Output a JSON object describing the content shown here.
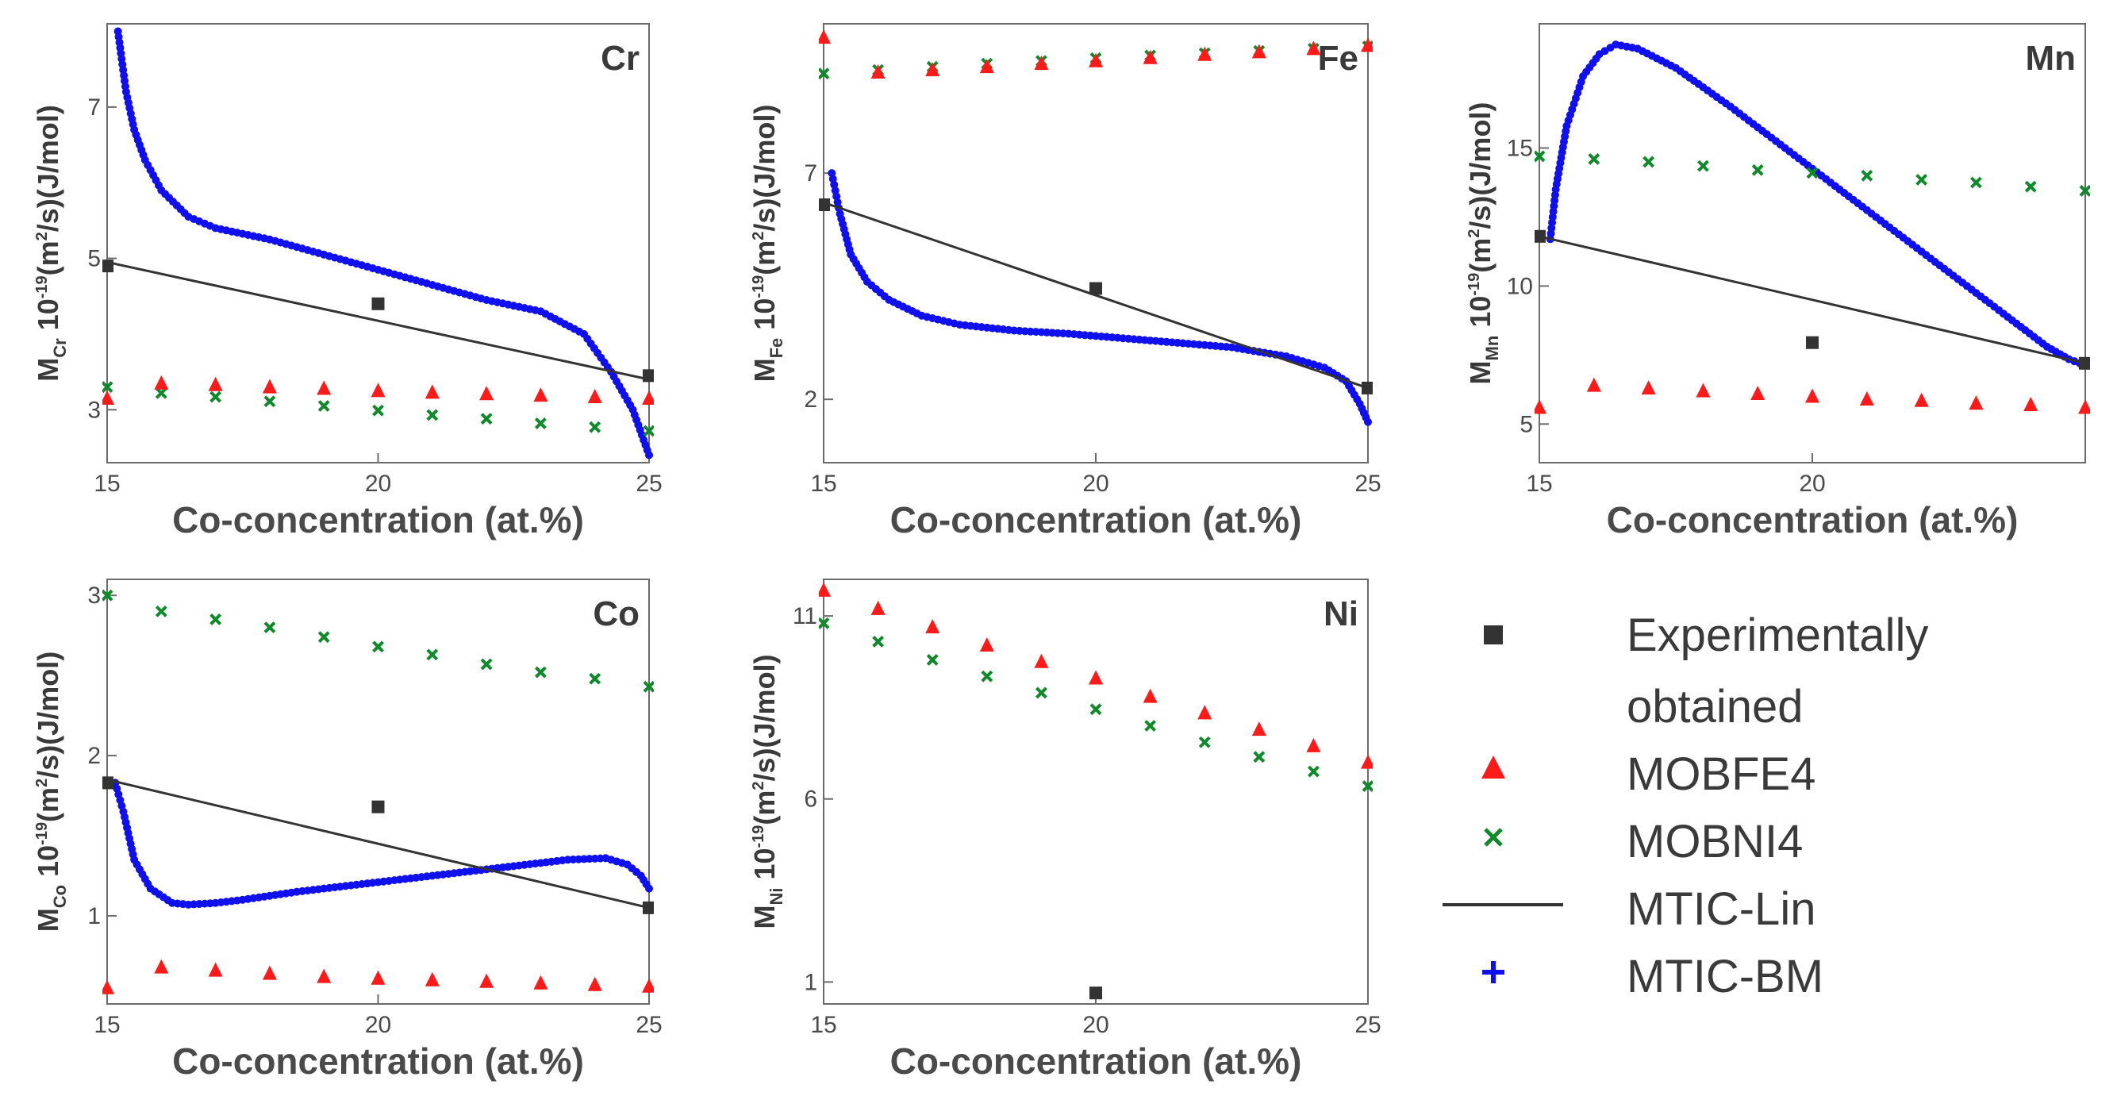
{
  "colors": {
    "experimental": "#333333",
    "mobfe4": "#ff1a1a",
    "mobni4": "#0f8a2a",
    "mtic_lin": "#333333",
    "mtic_bm": "#1010ee"
  },
  "legend": {
    "items": [
      {
        "key": "experimental",
        "marker": "square",
        "label_lines": [
          "Experimentally",
          "obtained"
        ]
      },
      {
        "key": "mobfe4",
        "marker": "triangle",
        "label_lines": [
          "MOBFE4"
        ]
      },
      {
        "key": "mobni4",
        "marker": "x",
        "label_lines": [
          "MOBNI4"
        ]
      },
      {
        "key": "mtic_lin",
        "marker": "line",
        "label_lines": [
          "MTIC-Lin"
        ]
      },
      {
        "key": "mtic_bm",
        "marker": "plus",
        "label_lines": [
          "MTIC-BM"
        ]
      }
    ]
  },
  "chart_data": [
    {
      "type": "scatter",
      "title": "Cr",
      "xlabel": "Co-concentration (at.%)",
      "ylabel": {
        "symbol": "M",
        "sub": "Cr",
        "prefix": "10",
        "sup_exp": "-19",
        "unit_pre": "(m",
        "unit_sup": "2",
        "unit_post": "/s)(J/mol)"
      },
      "xlim": [
        15,
        25
      ],
      "ylim": [
        2.3,
        8.1
      ],
      "xticks": [
        "15",
        "20",
        "25"
      ],
      "yticks": [
        "3",
        "5",
        "7"
      ],
      "experimental": {
        "x": [
          15,
          20,
          25
        ],
        "y": [
          4.9,
          4.4,
          3.45
        ]
      },
      "mtic_lin": {
        "x": [
          15,
          25
        ],
        "y": [
          4.95,
          3.4
        ]
      },
      "mobfe4": {
        "x": [
          15,
          16,
          17,
          18,
          19,
          20,
          21,
          22,
          23,
          24,
          25
        ],
        "y": [
          3.15,
          3.35,
          3.33,
          3.3,
          3.28,
          3.25,
          3.23,
          3.21,
          3.19,
          3.17,
          3.15
        ]
      },
      "mobni4": {
        "x": [
          15,
          16,
          17,
          18,
          19,
          20,
          21,
          22,
          23,
          24,
          25
        ],
        "y": [
          3.3,
          3.22,
          3.17,
          3.11,
          3.05,
          2.99,
          2.93,
          2.88,
          2.82,
          2.77,
          2.72
        ]
      },
      "mtic_bm": {
        "x": [
          15.2,
          15.35,
          15.5,
          15.7,
          16,
          16.5,
          17,
          18,
          19,
          20,
          21,
          22,
          23,
          23.8,
          24.3,
          24.7,
          24.9,
          25
        ],
        "y": [
          8.0,
          7.2,
          6.7,
          6.3,
          5.9,
          5.55,
          5.4,
          5.25,
          5.05,
          4.85,
          4.65,
          4.45,
          4.3,
          4.0,
          3.5,
          3.0,
          2.6,
          2.4
        ]
      }
    },
    {
      "type": "scatter",
      "title": "Fe",
      "xlabel": "Co-concentration (at.%)",
      "ylabel": {
        "symbol": "M",
        "sub": "Fe",
        "prefix": "10",
        "sup_exp": "-19",
        "unit_pre": "(m",
        "unit_sup": "2",
        "unit_post": "/s)(J/mol)"
      },
      "xlim": [
        15,
        25
      ],
      "ylim": [
        0.6,
        10.3
      ],
      "xticks": [
        "15",
        "20",
        "25"
      ],
      "yticks": [
        "2",
        "7"
      ],
      "experimental": {
        "x": [
          15,
          20,
          25
        ],
        "y": [
          6.3,
          4.45,
          2.25
        ]
      },
      "mtic_lin": {
        "x": [
          15,
          25
        ],
        "y": [
          6.35,
          2.25
        ]
      },
      "mobfe4": {
        "x": [
          15,
          16,
          17,
          18,
          19,
          20,
          21,
          22,
          23,
          24,
          25
        ],
        "y": [
          10.0,
          9.23,
          9.28,
          9.35,
          9.42,
          9.48,
          9.55,
          9.62,
          9.68,
          9.75,
          9.82
        ]
      },
      "mobni4": {
        "x": [
          15,
          16,
          17,
          18,
          19,
          20,
          21,
          22,
          23,
          24,
          25
        ],
        "y": [
          9.2,
          9.28,
          9.35,
          9.42,
          9.48,
          9.54,
          9.6,
          9.65,
          9.7,
          9.75,
          9.8
        ]
      },
      "mtic_bm": {
        "x": [
          15.15,
          15.3,
          15.5,
          15.8,
          16.2,
          16.8,
          17.5,
          18.5,
          19.5,
          20.5,
          21.5,
          22.5,
          23.5,
          24.2,
          24.6,
          24.85,
          25
        ],
        "y": [
          7.0,
          6.1,
          5.2,
          4.6,
          4.2,
          3.85,
          3.65,
          3.52,
          3.45,
          3.35,
          3.25,
          3.15,
          2.95,
          2.7,
          2.4,
          1.9,
          1.5
        ]
      }
    },
    {
      "type": "scatter",
      "title": "Mn",
      "xlabel": "Co-concentration (at.%)",
      "ylabel": {
        "symbol": "M",
        "sub": "Mn",
        "prefix": "10",
        "sup_exp": "-19",
        "unit_pre": "(m",
        "unit_sup": "2",
        "unit_post": "/s)(J/mol)"
      },
      "xlim": [
        15,
        25
      ],
      "ylim": [
        3.6,
        19.5
      ],
      "xticks": [
        "15",
        "20"
      ],
      "yticks": [
        "5",
        "10",
        "15"
      ],
      "experimental": {
        "x": [
          15,
          20,
          25
        ],
        "y": [
          11.8,
          7.95,
          7.2
        ]
      },
      "mtic_lin": {
        "x": [
          15,
          25
        ],
        "y": [
          11.8,
          7.2
        ]
      },
      "mobfe4": {
        "x": [
          15,
          16,
          17,
          18,
          19,
          20,
          21,
          22,
          23,
          24,
          25
        ],
        "y": [
          5.6,
          6.4,
          6.3,
          6.2,
          6.1,
          6.0,
          5.9,
          5.85,
          5.75,
          5.7,
          5.6
        ]
      },
      "mobni4": {
        "x": [
          15,
          16,
          17,
          18,
          19,
          20,
          21,
          22,
          23,
          24,
          25
        ],
        "y": [
          14.7,
          14.6,
          14.5,
          14.35,
          14.2,
          14.1,
          14.0,
          13.85,
          13.75,
          13.6,
          13.45
        ]
      },
      "mtic_bm": {
        "x": [
          15.2,
          15.3,
          15.5,
          15.8,
          16.1,
          16.4,
          16.8,
          17.5,
          18.5,
          19.5,
          20.5,
          21.5,
          22.5,
          23.5,
          24.3,
          24.7,
          24.9,
          25
        ],
        "y": [
          11.7,
          13.5,
          15.8,
          17.6,
          18.4,
          18.75,
          18.6,
          17.9,
          16.5,
          15.0,
          13.5,
          12.0,
          10.5,
          9.0,
          7.8,
          7.35,
          7.2,
          7.15
        ]
      }
    },
    {
      "type": "scatter",
      "title": "Co",
      "xlabel": "Co-concentration (at.%)",
      "ylabel": {
        "symbol": "M",
        "sub": "Co",
        "prefix": "10",
        "sup_exp": "-19",
        "unit_pre": "(m",
        "unit_sup": "2",
        "unit_post": "/s)(J/mol)"
      },
      "xlim": [
        15,
        25
      ],
      "ylim": [
        0.45,
        3.1
      ],
      "xticks": [
        "15",
        "20",
        "25"
      ],
      "yticks": [
        "1",
        "2",
        "3"
      ],
      "experimental": {
        "x": [
          15,
          20,
          25
        ],
        "y": [
          1.83,
          1.68,
          1.05
        ]
      },
      "mtic_lin": {
        "x": [
          15,
          25
        ],
        "y": [
          1.85,
          1.05
        ]
      },
      "mobfe4": {
        "x": [
          15,
          16,
          17,
          18,
          19,
          20,
          21,
          22,
          23,
          24,
          25
        ],
        "y": [
          0.55,
          0.68,
          0.66,
          0.64,
          0.62,
          0.61,
          0.6,
          0.59,
          0.58,
          0.57,
          0.56
        ]
      },
      "mobni4": {
        "x": [
          15,
          16,
          17,
          18,
          19,
          20,
          21,
          22,
          23,
          24,
          25
        ],
        "y": [
          3.0,
          2.9,
          2.85,
          2.8,
          2.74,
          2.68,
          2.63,
          2.57,
          2.52,
          2.48,
          2.43
        ]
      },
      "mtic_bm": {
        "x": [
          15.15,
          15.3,
          15.5,
          15.8,
          16.2,
          16.5,
          17,
          17.5,
          18.5,
          19.5,
          20.5,
          21.5,
          22.5,
          23.5,
          24.2,
          24.6,
          24.85,
          25
        ],
        "y": [
          1.83,
          1.65,
          1.35,
          1.17,
          1.08,
          1.07,
          1.08,
          1.1,
          1.15,
          1.19,
          1.23,
          1.27,
          1.31,
          1.35,
          1.36,
          1.32,
          1.25,
          1.17
        ]
      }
    },
    {
      "type": "scatter",
      "title": "Ni",
      "xlabel": "Co-concentration (at.%)",
      "ylabel": {
        "symbol": "M",
        "sub": "Ni",
        "prefix": "10",
        "sup_exp": "-19",
        "unit_pre": "(m",
        "unit_sup": "2",
        "unit_post": "/s)(J/mol)"
      },
      "xlim": [
        15,
        25
      ],
      "ylim": [
        0.4,
        12.0
      ],
      "xticks": [
        "15",
        "20",
        "25"
      ],
      "yticks": [
        "1",
        "6",
        "11"
      ],
      "experimental": {
        "x": [
          20
        ],
        "y": [
          0.7
        ]
      },
      "mobfe4": {
        "x": [
          15,
          16,
          17,
          18,
          19,
          20,
          21,
          22,
          23,
          24,
          25
        ],
        "y": [
          11.7,
          11.2,
          10.7,
          10.2,
          9.75,
          9.3,
          8.8,
          8.35,
          7.9,
          7.45,
          7.0
        ]
      },
      "mobni4": {
        "x": [
          15,
          16,
          17,
          18,
          19,
          20,
          21,
          22,
          23,
          24,
          25
        ],
        "y": [
          10.8,
          10.3,
          9.8,
          9.35,
          8.9,
          8.45,
          8.0,
          7.55,
          7.15,
          6.75,
          6.35
        ]
      }
    }
  ]
}
